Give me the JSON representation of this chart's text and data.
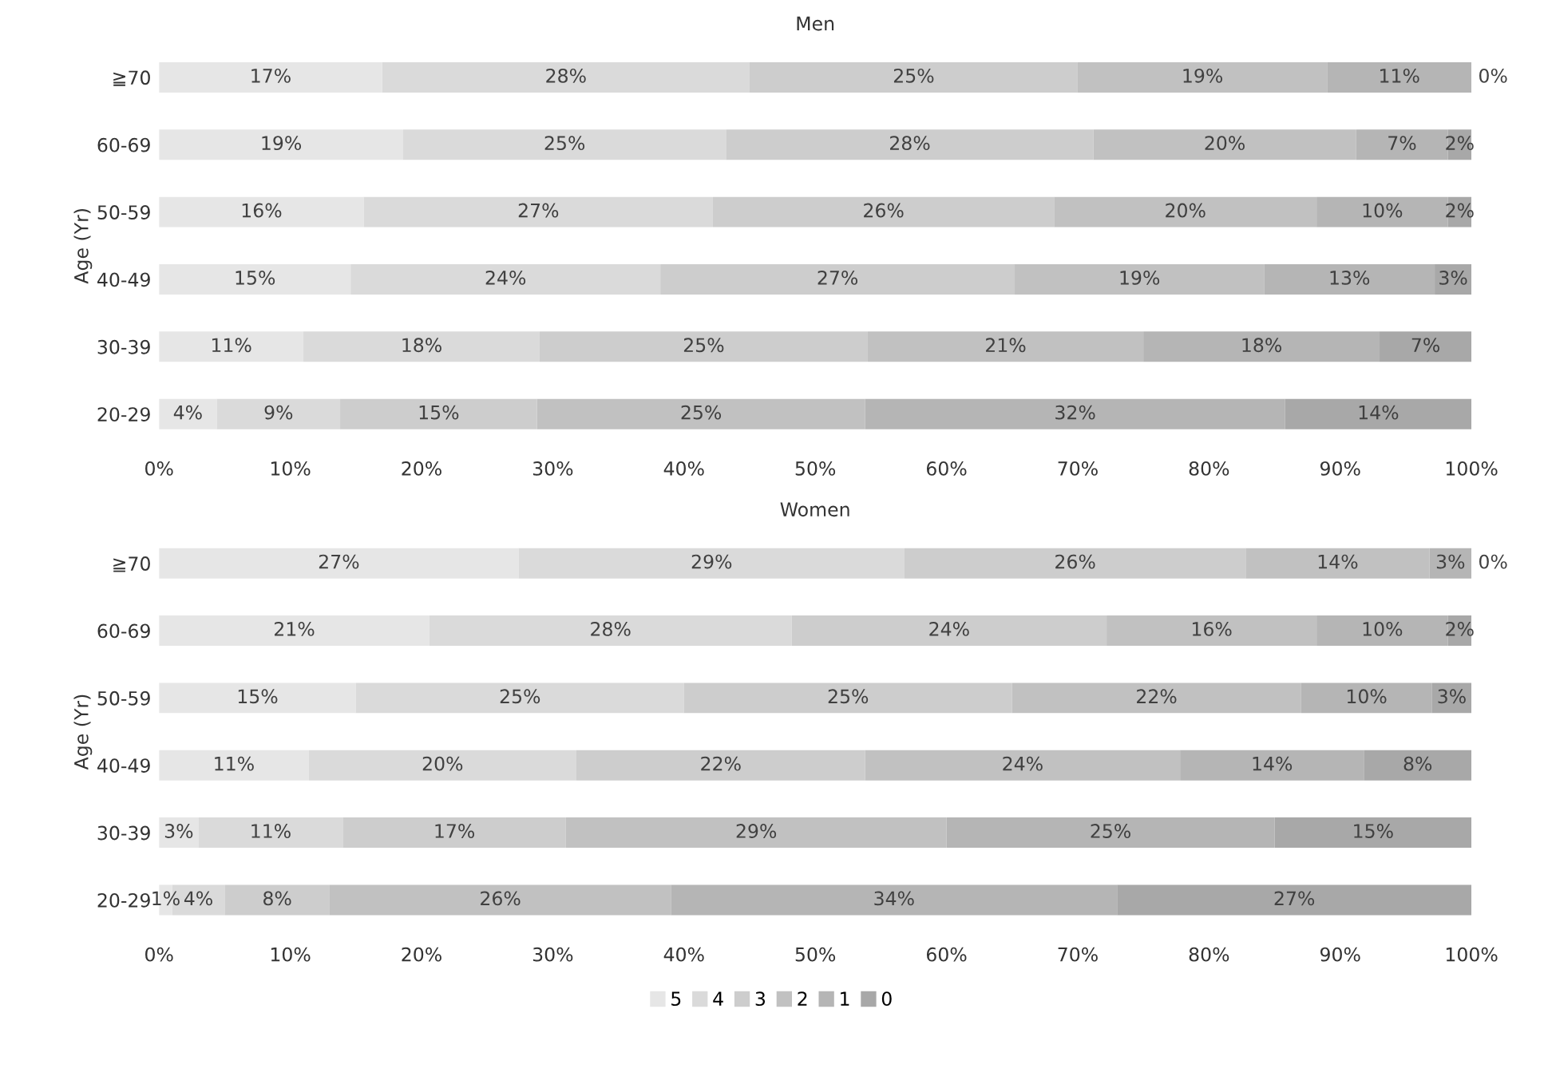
{
  "chart_data": [
    {
      "type": "bar",
      "orientation": "horizontal",
      "stacked": true,
      "title": "Men",
      "ylabel": "Age (Yr)",
      "categories": [
        "≧70",
        "60-69",
        "50-59",
        "40-49",
        "30-39",
        "20-29"
      ],
      "xlim": [
        0,
        100
      ],
      "xticks": [
        {
          "value": 0,
          "label": "0%"
        },
        {
          "value": 10,
          "label": "10%"
        },
        {
          "value": 20,
          "label": "20%"
        },
        {
          "value": 30,
          "label": "30%"
        },
        {
          "value": 40,
          "label": "40%"
        },
        {
          "value": 50,
          "label": "50%"
        },
        {
          "value": 60,
          "label": "60%"
        },
        {
          "value": 70,
          "label": "70%"
        },
        {
          "value": 80,
          "label": "80%"
        },
        {
          "value": 90,
          "label": "90%"
        },
        {
          "value": 100,
          "label": "100%"
        }
      ],
      "grid": false,
      "legend": "bottom",
      "series": [
        {
          "name": "5",
          "color": "#e6e6e6",
          "values": [
            17,
            18.6,
            15.6,
            14.6,
            11,
            4.4
          ],
          "value_labels": [
            "17%",
            "19%",
            "16%",
            "15%",
            "11%",
            "4%"
          ]
        },
        {
          "name": "4",
          "color": "#dadada",
          "values": [
            28,
            24.6,
            26.6,
            23.6,
            18,
            9.4
          ],
          "value_labels": [
            "28%",
            "25%",
            "27%",
            "24%",
            "18%",
            "9%"
          ]
        },
        {
          "name": "3",
          "color": "#cdcdcd",
          "values": [
            25,
            28,
            26,
            27,
            25,
            15
          ],
          "value_labels": [
            "25%",
            "28%",
            "26%",
            "27%",
            "25%",
            "15%"
          ]
        },
        {
          "name": "2",
          "color": "#c1c1c1",
          "values": [
            19,
            20,
            20,
            19,
            21,
            25
          ],
          "value_labels": [
            "19%",
            "20%",
            "20%",
            "19%",
            "21%",
            "25%"
          ]
        },
        {
          "name": "1",
          "color": "#b5b5b5",
          "values": [
            11,
            7,
            10,
            13,
            18,
            32
          ],
          "value_labels": [
            "11%",
            "7%",
            "10%",
            "13%",
            "18%",
            "32%"
          ]
        },
        {
          "name": "0",
          "color": "#a8a8a8",
          "values": [
            0,
            1.8,
            1.8,
            2.8,
            7,
            14.2
          ],
          "value_labels": [
            "0%",
            "2%",
            "2%",
            "3%",
            "7%",
            "14%"
          ]
        }
      ]
    },
    {
      "type": "bar",
      "orientation": "horizontal",
      "stacked": true,
      "title": "Women",
      "ylabel": "Age (Yr)",
      "categories": [
        "≧70",
        "60-69",
        "50-59",
        "40-49",
        "30-39",
        "20-29"
      ],
      "xlim": [
        0,
        100
      ],
      "xticks": [
        {
          "value": 0,
          "label": "0%"
        },
        {
          "value": 10,
          "label": "10%"
        },
        {
          "value": 20,
          "label": "20%"
        },
        {
          "value": 30,
          "label": "30%"
        },
        {
          "value": 40,
          "label": "40%"
        },
        {
          "value": 50,
          "label": "50%"
        },
        {
          "value": 60,
          "label": "60%"
        },
        {
          "value": 70,
          "label": "70%"
        },
        {
          "value": 80,
          "label": "80%"
        },
        {
          "value": 90,
          "label": "90%"
        },
        {
          "value": 100,
          "label": "100%"
        }
      ],
      "grid": false,
      "legend": false,
      "series": [
        {
          "name": "5",
          "color": "#e6e6e6",
          "values": [
            27.4,
            20.6,
            15,
            11.4,
            3,
            1
          ],
          "value_labels": [
            "27%",
            "21%",
            "15%",
            "11%",
            "3%",
            "1%"
          ]
        },
        {
          "name": "4",
          "color": "#dadada",
          "values": [
            29.4,
            27.6,
            25,
            20.4,
            11,
            4
          ],
          "value_labels": [
            "29%",
            "28%",
            "25%",
            "20%",
            "11%",
            "4%"
          ]
        },
        {
          "name": "3",
          "color": "#cdcdcd",
          "values": [
            26,
            24,
            25,
            22,
            17,
            8
          ],
          "value_labels": [
            "26%",
            "24%",
            "25%",
            "22%",
            "17%",
            "8%"
          ]
        },
        {
          "name": "2",
          "color": "#c1c1c1",
          "values": [
            14,
            16,
            22,
            24,
            29,
            26
          ],
          "value_labels": [
            "14%",
            "16%",
            "22%",
            "24%",
            "29%",
            "26%"
          ]
        },
        {
          "name": "1",
          "color": "#b5b5b5",
          "values": [
            3.2,
            10,
            10,
            14,
            25,
            34
          ],
          "value_labels": [
            "3%",
            "10%",
            "10%",
            "14%",
            "25%",
            "34%"
          ]
        },
        {
          "name": "0",
          "color": "#a8a8a8",
          "values": [
            0,
            1.8,
            3,
            8.2,
            15,
            27
          ],
          "value_labels": [
            "0%",
            "2%",
            "3%",
            "8%",
            "15%",
            "27%"
          ]
        }
      ]
    }
  ]
}
